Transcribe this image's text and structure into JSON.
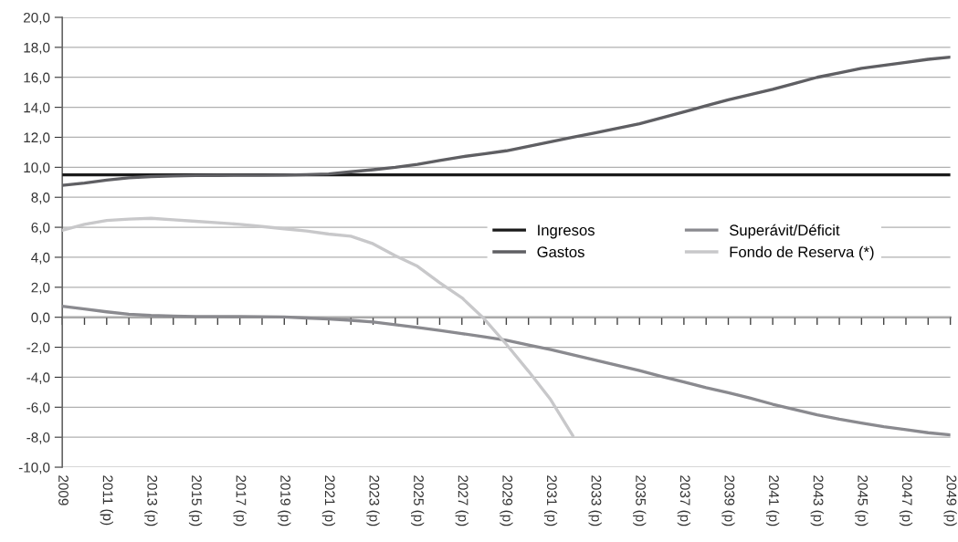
{
  "chart_data": {
    "type": "line",
    "categories": [
      "2009",
      null,
      "2011 (p)",
      null,
      "2013 (p)",
      null,
      "2015 (p)",
      null,
      "2017 (p)",
      null,
      "2019 (p)",
      null,
      "2021 (p)",
      null,
      "2023 (p)",
      null,
      "2025 (p)",
      null,
      "2027 (p)",
      null,
      "2029 (p)",
      null,
      "2031 (p)",
      null,
      "2033 (p)",
      null,
      "2035 (p)",
      null,
      "2037 (p)",
      null,
      "2039 (p)",
      null,
      "2041 (p)",
      null,
      "2043 (p)",
      null,
      "2045 (p)",
      null,
      "2047 (p)",
      null,
      "2049 (p)"
    ],
    "series": [
      {
        "name": "Ingresos",
        "color": "#1a1a1a",
        "values": [
          9.5,
          9.5,
          9.5,
          9.5,
          9.5,
          9.5,
          9.5,
          9.5,
          9.5,
          9.5,
          9.5,
          9.5,
          9.5,
          9.5,
          9.5,
          9.5,
          9.5,
          9.5,
          9.5,
          9.5,
          9.5,
          9.5,
          9.5,
          9.5,
          9.5,
          9.5,
          9.5,
          9.5,
          9.5,
          9.5,
          9.5,
          9.5,
          9.5,
          9.5,
          9.5,
          9.5,
          9.5,
          9.5,
          9.5,
          9.5,
          9.5
        ]
      },
      {
        "name": "Gastos",
        "color": "#5f5f63",
        "values": [
          8.8,
          8.95,
          9.15,
          9.3,
          9.38,
          9.42,
          9.45,
          9.46,
          9.47,
          9.47,
          9.48,
          9.51,
          9.56,
          9.7,
          9.84,
          10.0,
          10.2,
          10.45,
          10.7,
          10.9,
          11.1,
          11.4,
          11.7,
          12.0,
          12.3,
          12.6,
          12.9,
          13.3,
          13.7,
          14.1,
          14.5,
          14.85,
          15.2,
          15.6,
          16.0,
          16.3,
          16.6,
          16.8,
          17.0,
          17.2,
          17.35
        ]
      },
      {
        "name": "Superávit/Déficit",
        "color": "#8a8a8f",
        "values": [
          0.73,
          0.55,
          0.36,
          0.2,
          0.12,
          0.08,
          0.05,
          0.05,
          0.04,
          0.03,
          0.02,
          -0.05,
          -0.12,
          -0.2,
          -0.32,
          -0.5,
          -0.68,
          -0.88,
          -1.09,
          -1.3,
          -1.53,
          -1.85,
          -2.16,
          -2.5,
          -2.85,
          -3.2,
          -3.55,
          -3.95,
          -4.32,
          -4.7,
          -5.03,
          -5.4,
          -5.8,
          -6.15,
          -6.5,
          -6.8,
          -7.05,
          -7.3,
          -7.5,
          -7.7,
          -7.85
        ]
      },
      {
        "name": "Fondo de Reserva (*)",
        "color": "#c8c8ca",
        "values": [
          5.8,
          6.2,
          6.45,
          6.55,
          6.6,
          6.5,
          6.4,
          6.3,
          6.2,
          6.05,
          5.9,
          5.75,
          5.55,
          5.4,
          4.9,
          4.1,
          3.4,
          2.3,
          1.3,
          -0.1,
          -1.8,
          -3.6,
          -5.5,
          -7.9,
          null,
          null,
          null,
          null,
          null,
          null,
          null,
          null,
          null,
          null,
          null,
          null,
          null,
          null,
          null,
          null,
          null
        ]
      }
    ],
    "ylim": [
      -10,
      20
    ],
    "yticks": [
      {
        "value": -10,
        "label": "-10,0"
      },
      {
        "value": -8,
        "label": "-8,0"
      },
      {
        "value": -6,
        "label": "-6,0"
      },
      {
        "value": -4,
        "label": "-4,0"
      },
      {
        "value": -2,
        "label": "-2,0"
      },
      {
        "value": 0,
        "label": "0,0"
      },
      {
        "value": 2,
        "label": "2,0"
      },
      {
        "value": 4,
        "label": "4,0"
      },
      {
        "value": 6,
        "label": "6,0"
      },
      {
        "value": 8,
        "label": "8,0"
      },
      {
        "value": 10,
        "label": "10,0"
      },
      {
        "value": 12,
        "label": "12,0"
      },
      {
        "value": 14,
        "label": "14,0"
      },
      {
        "value": 16,
        "label": "16,0"
      },
      {
        "value": 18,
        "label": "18,0"
      },
      {
        "value": 20,
        "label": "20,0"
      }
    ],
    "grid": "y",
    "legend": "right",
    "line_style": "solid",
    "marker": "none"
  }
}
